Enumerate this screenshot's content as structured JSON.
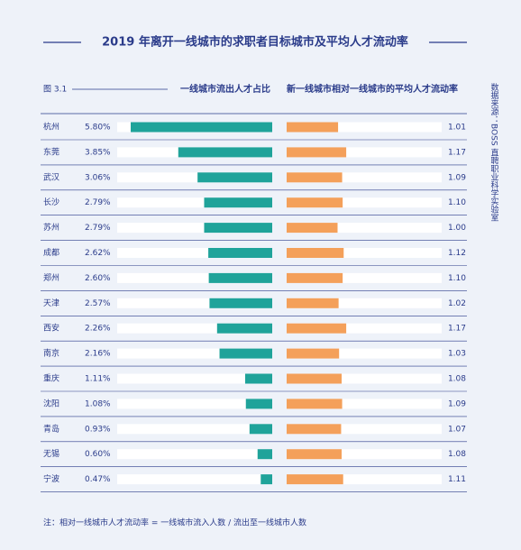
{
  "chart_data": {
    "type": "bar",
    "title": "2019 年离开一线城市的求职者目标城市及平均人才流动率",
    "figure_label": "图 3.1",
    "source": "数据来源：BOSS 直聘职业科学实验室",
    "note": "注：相对一线城市人才流动率 = 一线城市流入人数 / 流出至一线城市人数",
    "categories": [
      "杭州",
      "东莞",
      "武汉",
      "长沙",
      "苏州",
      "成都",
      "郑州",
      "天津",
      "西安",
      "南京",
      "重庆",
      "沈阳",
      "青岛",
      "无锡",
      "宁波"
    ],
    "series": [
      {
        "name": "一线城市流出人才占比",
        "color": "#1fa39a",
        "values": [
          5.8,
          3.85,
          3.06,
          2.79,
          2.79,
          2.62,
          2.6,
          2.57,
          2.26,
          2.16,
          1.11,
          1.08,
          0.93,
          0.6,
          0.47
        ],
        "value_labels": [
          "5.80%",
          "3.85%",
          "3.06%",
          "2.79%",
          "2.79%",
          "2.62%",
          "2.60%",
          "2.57%",
          "2.26%",
          "2.16%",
          "1.11%",
          "1.08%",
          "0.93%",
          "0.60%",
          "0.47%"
        ]
      },
      {
        "name": "新一线城市相对一线城市的平均人才流动率",
        "color": "#f4a05a",
        "values": [
          1.01,
          1.17,
          1.09,
          1.1,
          1.0,
          1.12,
          1.1,
          1.02,
          1.17,
          1.03,
          1.08,
          1.09,
          1.07,
          1.08,
          1.11
        ],
        "value_labels": [
          "1.01",
          "1.17",
          "1.09",
          "1.10",
          "1.00",
          "1.12",
          "1.10",
          "1.02",
          "1.17",
          "1.03",
          "1.08",
          "1.09",
          "1.07",
          "1.08",
          "1.11"
        ]
      }
    ]
  }
}
